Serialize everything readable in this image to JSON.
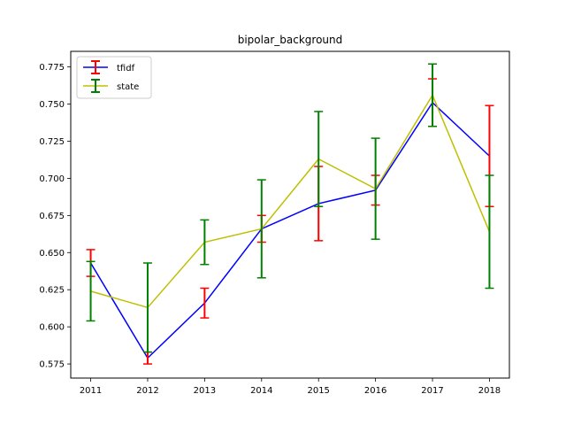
{
  "chart_data": {
    "type": "line",
    "title": "bipolar_background",
    "xlabel": "",
    "ylabel": "",
    "x": [
      2011,
      2012,
      2013,
      2014,
      2015,
      2016,
      2017,
      2018
    ],
    "x_tick_labels": [
      "2011",
      "2012",
      "2013",
      "2014",
      "2015",
      "2016",
      "2017",
      "2018"
    ],
    "xlim": [
      2010.65,
      2018.35
    ],
    "ylim": [
      0.5655,
      0.7855
    ],
    "y_ticks": [
      0.575,
      0.6,
      0.625,
      0.65,
      0.675,
      0.7,
      0.725,
      0.75,
      0.775
    ],
    "y_tick_labels": [
      "0.575",
      "0.600",
      "0.625",
      "0.650",
      "0.675",
      "0.700",
      "0.725",
      "0.750",
      "0.775"
    ],
    "grid": false,
    "legend_position": "top-left",
    "series": [
      {
        "name": "tfidf",
        "color": "#0000ff",
        "error_color": "#ff0000",
        "values": [
          0.643,
          0.579,
          0.616,
          0.666,
          0.683,
          0.692,
          0.751,
          0.715
        ],
        "error": [
          0.009,
          0.004,
          0.01,
          0.009,
          0.025,
          0.01,
          0.016,
          0.034
        ]
      },
      {
        "name": "state",
        "color": "#bfbf00",
        "error_color": "#008000",
        "values": [
          0.624,
          0.613,
          0.657,
          0.666,
          0.713,
          0.693,
          0.756,
          0.664
        ],
        "error": [
          0.02,
          0.03,
          0.015,
          0.033,
          0.032,
          0.034,
          0.021,
          0.038
        ]
      }
    ]
  }
}
